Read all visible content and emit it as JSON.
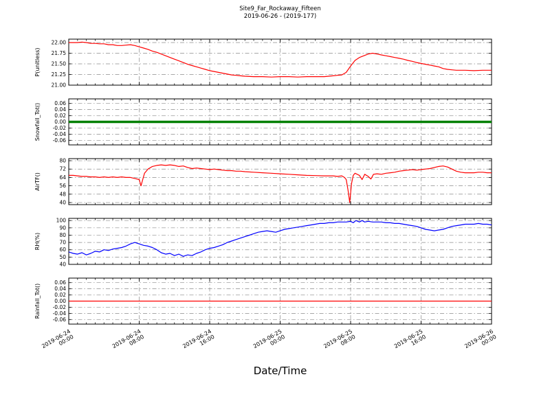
{
  "title": "Site9_Far_Rockaway_Fifteen",
  "subtitle": "2019-06-26 - (2019-177)",
  "xlabel": "Date/Time",
  "chart_data": {
    "type": "line",
    "x_axis": "Date/Time",
    "x_hours_range": [
      0,
      48
    ],
    "x_ticks": [
      {
        "hour": 0,
        "date": "2019-06-24",
        "time": "00:00"
      },
      {
        "hour": 8,
        "date": "2019-06-24",
        "time": "08:00"
      },
      {
        "hour": 16,
        "date": "2019-06-24",
        "time": "16:00"
      },
      {
        "hour": 24,
        "date": "2019-06-25",
        "time": "00:00"
      },
      {
        "hour": 32,
        "date": "2019-06-25",
        "time": "08:00"
      },
      {
        "hour": 40,
        "date": "2019-06-25",
        "time": "16:00"
      },
      {
        "hour": 48,
        "date": "2019-06-26",
        "time": "00:00"
      }
    ],
    "panels": [
      {
        "ylabel": "P(unitless)",
        "color": "#ff0000",
        "line_width": 1.2,
        "ylim": [
          21.0,
          22.08
        ],
        "ytick_values": [
          21.0,
          21.25,
          21.5,
          21.75,
          22.0
        ],
        "ytick_labels": [
          "21.00",
          "21.25",
          "21.50",
          "21.75",
          "22.00"
        ],
        "points": [
          [
            0,
            22.0
          ],
          [
            1,
            22.0
          ],
          [
            1.5,
            22.01
          ],
          [
            2,
            22.0
          ],
          [
            2.5,
            21.98
          ],
          [
            3,
            21.98
          ],
          [
            3.5,
            21.97
          ],
          [
            4,
            21.97
          ],
          [
            4.5,
            21.95
          ],
          [
            5,
            21.95
          ],
          [
            5.5,
            21.93
          ],
          [
            6,
            21.93
          ],
          [
            6.5,
            21.94
          ],
          [
            7,
            21.95
          ],
          [
            7.5,
            21.93
          ],
          [
            8,
            21.9
          ],
          [
            8.5,
            21.87
          ],
          [
            9,
            21.84
          ],
          [
            9.5,
            21.8
          ],
          [
            10,
            21.77
          ],
          [
            10.5,
            21.73
          ],
          [
            11,
            21.69
          ],
          [
            11.5,
            21.65
          ],
          [
            12,
            21.61
          ],
          [
            12.5,
            21.57
          ],
          [
            13,
            21.53
          ],
          [
            13.5,
            21.49
          ],
          [
            14,
            21.46
          ],
          [
            14.5,
            21.43
          ],
          [
            15,
            21.4
          ],
          [
            15.5,
            21.37
          ],
          [
            16,
            21.34
          ],
          [
            16.5,
            21.32
          ],
          [
            17,
            21.3
          ],
          [
            17.5,
            21.28
          ],
          [
            18,
            21.26
          ],
          [
            18.5,
            21.24
          ],
          [
            19,
            21.23
          ],
          [
            19.5,
            21.22
          ],
          [
            20,
            21.21
          ],
          [
            21,
            21.2
          ],
          [
            22,
            21.2
          ],
          [
            23,
            21.19
          ],
          [
            24,
            21.2
          ],
          [
            25,
            21.2
          ],
          [
            26,
            21.19
          ],
          [
            27,
            21.2
          ],
          [
            28,
            21.2
          ],
          [
            29,
            21.2
          ],
          [
            29.5,
            21.21
          ],
          [
            30,
            21.22
          ],
          [
            30.5,
            21.23
          ],
          [
            31,
            21.24
          ],
          [
            31.5,
            21.3
          ],
          [
            32,
            21.45
          ],
          [
            32.5,
            21.58
          ],
          [
            33,
            21.65
          ],
          [
            33.5,
            21.69
          ],
          [
            34,
            21.73
          ],
          [
            34.5,
            21.75
          ],
          [
            35,
            21.73
          ],
          [
            35.5,
            21.71
          ],
          [
            36,
            21.69
          ],
          [
            36.5,
            21.67
          ],
          [
            37,
            21.65
          ],
          [
            37.5,
            21.63
          ],
          [
            38,
            21.61
          ],
          [
            38.5,
            21.58
          ],
          [
            39,
            21.56
          ],
          [
            39.5,
            21.53
          ],
          [
            40,
            21.51
          ],
          [
            40.5,
            21.49
          ],
          [
            41,
            21.47
          ],
          [
            41.5,
            21.45
          ],
          [
            42,
            21.43
          ],
          [
            42.5,
            21.39
          ],
          [
            43,
            21.37
          ],
          [
            43.5,
            21.36
          ],
          [
            44,
            21.35
          ],
          [
            45,
            21.35
          ],
          [
            46,
            21.34
          ],
          [
            47,
            21.35
          ],
          [
            48,
            21.35
          ]
        ]
      },
      {
        "ylabel": "Snowfall_Tot()",
        "color": "#008000",
        "line_width": 3.5,
        "ylim": [
          -0.075,
          0.075
        ],
        "ytick_values": [
          -0.06,
          -0.04,
          -0.02,
          0,
          0.02,
          0.04,
          0.06
        ],
        "ytick_labels": [
          "-0.06",
          "-0.04",
          "-0.02",
          "0.00",
          "0.02",
          "0.04",
          "0.06"
        ],
        "points": [
          [
            0,
            0
          ],
          [
            48,
            0
          ]
        ]
      },
      {
        "ylabel": "AirTF()",
        "color": "#ff0000",
        "line_width": 1.2,
        "ylim": [
          38,
          82
        ],
        "ytick_values": [
          40,
          48,
          56,
          64,
          72,
          80
        ],
        "ytick_labels": [
          "40",
          "48",
          "56",
          "64",
          "72",
          "80"
        ],
        "points": [
          [
            0,
            66
          ],
          [
            0.5,
            66
          ],
          [
            1,
            65.5
          ],
          [
            1.5,
            65
          ],
          [
            2,
            65
          ],
          [
            2.5,
            64.5
          ],
          [
            3,
            64.5
          ],
          [
            3.5,
            64
          ],
          [
            4,
            64.5
          ],
          [
            4.5,
            64
          ],
          [
            5,
            64.5
          ],
          [
            5.5,
            64
          ],
          [
            6,
            64.5
          ],
          [
            6.5,
            64
          ],
          [
            7,
            64
          ],
          [
            7.5,
            63
          ],
          [
            8,
            62
          ],
          [
            8.2,
            56
          ],
          [
            8.4,
            62
          ],
          [
            8.6,
            68
          ],
          [
            9,
            72
          ],
          [
            9.5,
            74.5
          ],
          [
            10,
            75.5
          ],
          [
            10.5,
            76
          ],
          [
            11,
            75.5
          ],
          [
            11.5,
            76
          ],
          [
            12,
            75.5
          ],
          [
            12.5,
            74.5
          ],
          [
            13,
            75
          ],
          [
            13.5,
            73.5
          ],
          [
            14,
            72.5
          ],
          [
            14.5,
            73
          ],
          [
            15,
            72.5
          ],
          [
            15.5,
            72
          ],
          [
            16,
            71.5
          ],
          [
            16.5,
            72
          ],
          [
            17,
            71.5
          ],
          [
            17.5,
            71
          ],
          [
            18,
            70.5
          ],
          [
            18.5,
            70.5
          ],
          [
            19,
            70
          ],
          [
            19.5,
            70
          ],
          [
            20,
            69.5
          ],
          [
            21,
            69
          ],
          [
            22,
            68.5
          ],
          [
            23,
            68
          ],
          [
            24,
            67.5
          ],
          [
            25,
            67
          ],
          [
            26,
            66.5
          ],
          [
            27,
            66
          ],
          [
            28,
            65.8
          ],
          [
            29,
            65.5
          ],
          [
            30,
            65.5
          ],
          [
            30.5,
            65
          ],
          [
            31,
            65.5
          ],
          [
            31.3,
            64
          ],
          [
            31.5,
            62
          ],
          [
            31.7,
            52
          ],
          [
            31.9,
            40
          ],
          [
            32.1,
            58
          ],
          [
            32.3,
            66
          ],
          [
            32.5,
            68
          ],
          [
            33,
            66
          ],
          [
            33.3,
            62
          ],
          [
            33.6,
            67
          ],
          [
            34,
            65
          ],
          [
            34.3,
            62.5
          ],
          [
            34.6,
            67
          ],
          [
            35,
            67.5
          ],
          [
            35.5,
            67
          ],
          [
            36,
            68
          ],
          [
            36.5,
            68.5
          ],
          [
            37,
            69
          ],
          [
            37.5,
            70
          ],
          [
            38,
            70.5
          ],
          [
            38.5,
            71
          ],
          [
            39,
            71.5
          ],
          [
            39.5,
            71
          ],
          [
            40,
            71.5
          ],
          [
            40.5,
            72
          ],
          [
            41,
            72.5
          ],
          [
            41.5,
            73.5
          ],
          [
            42,
            74.5
          ],
          [
            42.5,
            75
          ],
          [
            43,
            74
          ],
          [
            43.5,
            72
          ],
          [
            44,
            70
          ],
          [
            44.5,
            69
          ],
          [
            45,
            68.5
          ],
          [
            45.5,
            68.5
          ],
          [
            46,
            68.5
          ],
          [
            46.5,
            69
          ],
          [
            47,
            69
          ],
          [
            47.5,
            68.5
          ],
          [
            48,
            68.5
          ]
        ]
      },
      {
        "ylabel": "RH(%)",
        "color": "#0000ff",
        "line_width": 1.2,
        "ylim": [
          40,
          103
        ],
        "ytick_values": [
          40,
          50,
          60,
          70,
          80,
          90,
          100
        ],
        "ytick_labels": [
          "40",
          "50",
          "60",
          "70",
          "80",
          "90",
          "100"
        ],
        "points": [
          [
            0,
            57
          ],
          [
            0.5,
            55
          ],
          [
            1,
            54
          ],
          [
            1.5,
            56
          ],
          [
            2,
            53
          ],
          [
            2.5,
            55
          ],
          [
            3,
            58
          ],
          [
            3.5,
            57
          ],
          [
            4,
            60
          ],
          [
            4.5,
            59
          ],
          [
            5,
            61
          ],
          [
            5.5,
            62
          ],
          [
            6,
            63
          ],
          [
            6.5,
            65
          ],
          [
            7,
            68
          ],
          [
            7.5,
            70
          ],
          [
            8,
            68
          ],
          [
            8.5,
            66
          ],
          [
            9,
            65
          ],
          [
            9.5,
            63
          ],
          [
            10,
            60
          ],
          [
            10.5,
            56
          ],
          [
            11,
            54
          ],
          [
            11.5,
            55
          ],
          [
            12,
            52
          ],
          [
            12.5,
            54
          ],
          [
            13,
            51
          ],
          [
            13.5,
            53
          ],
          [
            14,
            52
          ],
          [
            14.5,
            55
          ],
          [
            15,
            57
          ],
          [
            15.5,
            60
          ],
          [
            16,
            62
          ],
          [
            16.5,
            63
          ],
          [
            17,
            65
          ],
          [
            17.5,
            67
          ],
          [
            18,
            70
          ],
          [
            18.5,
            72
          ],
          [
            19,
            74
          ],
          [
            19.5,
            76
          ],
          [
            20,
            78
          ],
          [
            20.5,
            80
          ],
          [
            21,
            82
          ],
          [
            21.5,
            84
          ],
          [
            22,
            85
          ],
          [
            22.5,
            86
          ],
          [
            23,
            85
          ],
          [
            23.5,
            84
          ],
          [
            24,
            86
          ],
          [
            24.5,
            88
          ],
          [
            25,
            89
          ],
          [
            25.5,
            90
          ],
          [
            26,
            91
          ],
          [
            26.5,
            92
          ],
          [
            27,
            93
          ],
          [
            27.5,
            94
          ],
          [
            28,
            95
          ],
          [
            28.5,
            96
          ],
          [
            29,
            96
          ],
          [
            29.5,
            97
          ],
          [
            30,
            97
          ],
          [
            30.5,
            98
          ],
          [
            31,
            98
          ],
          [
            31.5,
            98
          ],
          [
            32,
            99
          ],
          [
            32.3,
            97
          ],
          [
            32.6,
            100
          ],
          [
            33,
            98
          ],
          [
            33.3,
            100
          ],
          [
            33.6,
            98
          ],
          [
            34,
            99
          ],
          [
            34.5,
            98
          ],
          [
            35,
            98
          ],
          [
            35.5,
            98
          ],
          [
            36,
            97
          ],
          [
            36.5,
            97
          ],
          [
            37,
            96
          ],
          [
            37.5,
            96
          ],
          [
            38,
            95
          ],
          [
            38.5,
            94
          ],
          [
            39,
            93
          ],
          [
            39.5,
            92
          ],
          [
            40,
            90
          ],
          [
            40.5,
            88
          ],
          [
            41,
            87
          ],
          [
            41.5,
            86
          ],
          [
            42,
            87
          ],
          [
            42.5,
            88
          ],
          [
            43,
            90
          ],
          [
            43.5,
            92
          ],
          [
            44,
            93
          ],
          [
            44.5,
            94
          ],
          [
            45,
            95
          ],
          [
            45.5,
            95
          ],
          [
            46,
            95
          ],
          [
            46.5,
            96
          ],
          [
            47,
            95
          ],
          [
            47.5,
            95
          ],
          [
            48,
            94
          ]
        ]
      },
      {
        "ylabel": "Rainfall_Tot()",
        "color": "#ff0000",
        "line_width": 1.2,
        "ylim": [
          -0.075,
          0.075
        ],
        "ytick_values": [
          -0.06,
          -0.04,
          -0.02,
          0,
          0.02,
          0.04,
          0.06
        ],
        "ytick_labels": [
          "-0.06",
          "-0.04",
          "-0.02",
          "0.00",
          "0.02",
          "0.04",
          "0.06"
        ],
        "points": [
          [
            0,
            0
          ],
          [
            48,
            0
          ]
        ]
      }
    ]
  }
}
